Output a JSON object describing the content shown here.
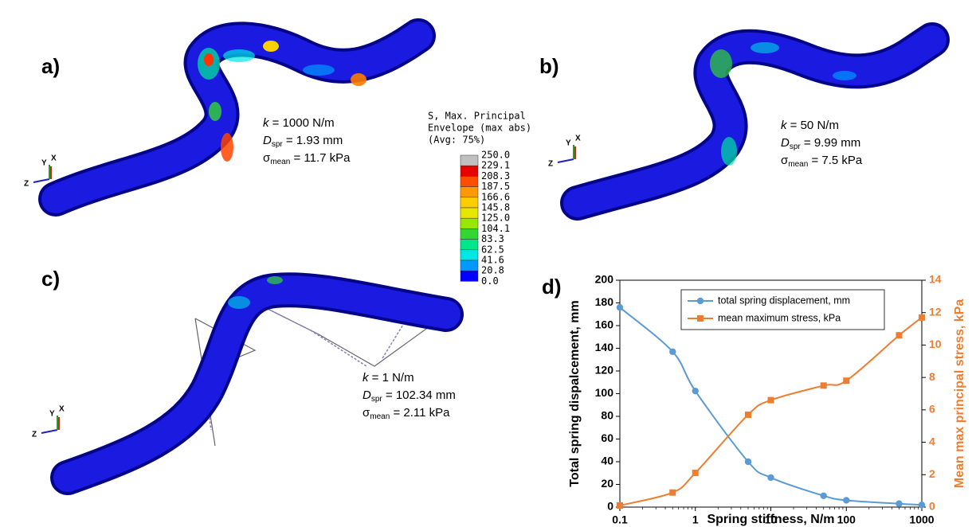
{
  "panels": [
    {
      "label": "a)",
      "lines": [
        {
          "symbol": "k",
          "text": " = 1000 N/m"
        },
        {
          "symbol": "D",
          "sub": "spr",
          "text": " = 1.93 mm"
        },
        {
          "symbol": "σ",
          "sub": "mean",
          "text": " = 11.7 kPa"
        }
      ]
    },
    {
      "label": "b)",
      "lines": [
        {
          "symbol": "k",
          "text": " = 50 N/m"
        },
        {
          "symbol": "D",
          "sub": "spr",
          "text": " = 9.99 mm"
        },
        {
          "symbol": "σ",
          "sub": "mean",
          "text": " = 7.5 kPa"
        }
      ]
    },
    {
      "label": "c)",
      "lines": [
        {
          "symbol": "k",
          "text": " = 1 N/m"
        },
        {
          "symbol": "D",
          "sub": "spr",
          "text": " = 102.34 mm"
        },
        {
          "symbol": "σ",
          "sub": "mean",
          "text": " = 2.11 kPa"
        }
      ]
    }
  ],
  "triad": {
    "y": "Y",
    "x": "X",
    "z": "Z"
  },
  "legend": {
    "title": [
      "S, Max. Principal",
      "Envelope (max abs)",
      "(Avg: 75%)"
    ],
    "labels": [
      "250.0",
      "229.1",
      "208.3",
      "187.5",
      "166.6",
      "145.8",
      "125.0",
      "104.1",
      "83.3",
      "62.5",
      "41.6",
      "20.8",
      "0.0"
    ],
    "colors": [
      "#c0c0c0",
      "#e60000",
      "#ff4d00",
      "#ff9900",
      "#ffcc00",
      "#e6e600",
      "#99e600",
      "#33d633",
      "#00e68a",
      "#00e6e6",
      "#0099ff",
      "#0000ff"
    ]
  },
  "chart_data": {
    "type": "line",
    "label": "d)",
    "x": [
      0.1,
      0.5,
      1,
      5,
      10,
      50,
      100,
      500,
      1000
    ],
    "xlabel": "Spring stiffness, N/m",
    "ylabel": "Total spring dispalcement, mm",
    "y2label": "Mean max principal stress, kPa",
    "xscale": "log",
    "xlim": [
      0.1,
      1000
    ],
    "xticks": [
      0.1,
      1,
      10,
      100,
      1000
    ],
    "ylim": [
      0,
      200
    ],
    "yticks": [
      0,
      20,
      40,
      60,
      80,
      100,
      120,
      140,
      160,
      180,
      200
    ],
    "y2lim": [
      0,
      14
    ],
    "y2ticks": [
      0,
      2,
      4,
      6,
      8,
      10,
      12,
      14
    ],
    "grid": false,
    "legend": "top",
    "series": [
      {
        "name": "total spring displacement, mm",
        "color": "#5b9bd5",
        "marker": "circle",
        "values": [
          176,
          137,
          102.34,
          40,
          26,
          9.99,
          6,
          3,
          1.93
        ]
      },
      {
        "name": "mean maximum stress, kPa",
        "color": "#ed7d31",
        "marker": "square",
        "axis": "y2",
        "values": [
          0.1,
          0.9,
          2.11,
          5.7,
          6.6,
          7.5,
          7.8,
          10.6,
          11.7
        ]
      }
    ]
  }
}
